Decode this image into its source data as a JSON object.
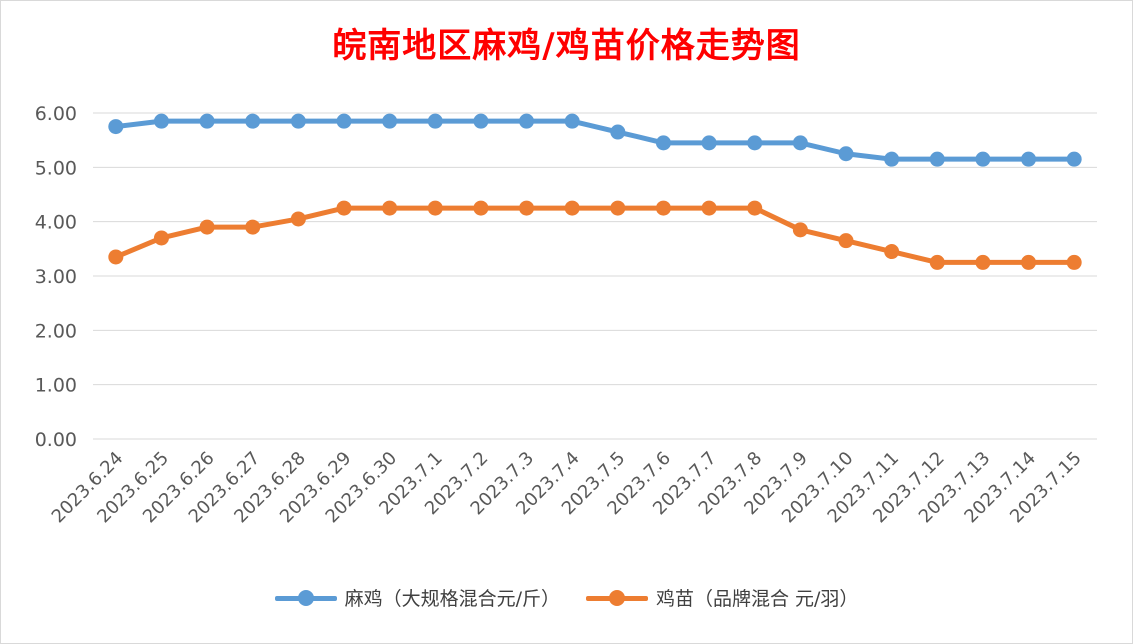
{
  "chart_data": {
    "type": "line",
    "title": "皖南地区麻鸡/鸡苗价格走势图",
    "xlabel": "",
    "ylabel": "",
    "ylim": [
      0,
      6
    ],
    "y_ticks": [
      "0.00",
      "1.00",
      "2.00",
      "3.00",
      "4.00",
      "5.00",
      "6.00"
    ],
    "grid": true,
    "legend_position": "bottom",
    "categories": [
      "2023.6.24",
      "2023.6.25",
      "2023.6.26",
      "2023.6.27",
      "2023.6.28",
      "2023.6.29",
      "2023.6.30",
      "2023.7.1",
      "2023.7.2",
      "2023.7.3",
      "2023.7.4",
      "2023.7.5",
      "2023.7.6",
      "2023.7.7",
      "2023.7.8",
      "2023.7.9",
      "2023.7.10",
      "2023.7.11",
      "2023.7.12",
      "2023.7.13",
      "2023.7.14",
      "2023.7.15"
    ],
    "series": [
      {
        "name": "麻鸡（大规格混合元/斤）",
        "color": "#5b9bd5",
        "values": [
          5.75,
          5.85,
          5.85,
          5.85,
          5.85,
          5.85,
          5.85,
          5.85,
          5.85,
          5.85,
          5.85,
          5.65,
          5.45,
          5.45,
          5.45,
          5.45,
          5.25,
          5.15,
          5.15,
          5.15,
          5.15,
          5.15
        ]
      },
      {
        "name": "鸡苗（品牌混合 元/羽）",
        "color": "#ed7d31",
        "values": [
          3.35,
          3.7,
          3.9,
          3.9,
          4.05,
          4.25,
          4.25,
          4.25,
          4.25,
          4.25,
          4.25,
          4.25,
          4.25,
          4.25,
          4.25,
          3.85,
          3.65,
          3.45,
          3.25,
          3.25,
          3.25,
          3.25
        ]
      }
    ]
  }
}
